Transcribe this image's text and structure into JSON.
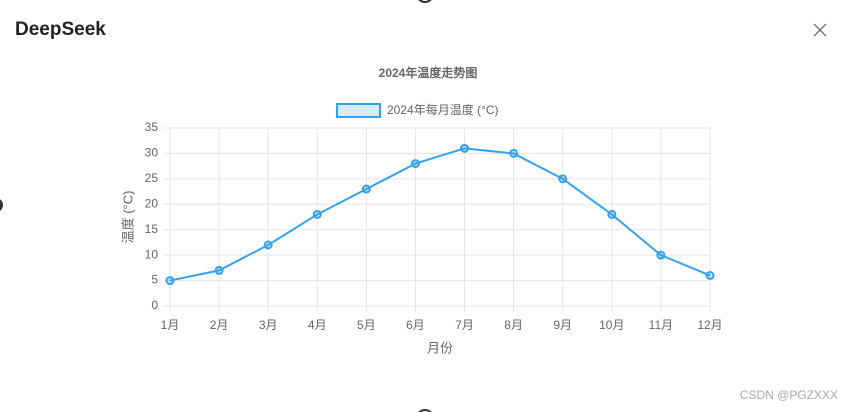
{
  "header": {
    "title": "DeepSeek"
  },
  "watermark": "CSDN @PGZXXX",
  "chart_data": {
    "type": "line",
    "title": "2024年温度走势图",
    "x_label": "月份",
    "y_label": "温度 (°C)",
    "categories": [
      "1月",
      "2月",
      "3月",
      "4月",
      "5月",
      "6月",
      "7月",
      "8月",
      "9月",
      "10月",
      "11月",
      "12月"
    ],
    "series": [
      {
        "name": "2024年每月温度 (°C)",
        "color": "#36a2eb",
        "values": [
          5,
          7,
          12,
          18,
          23,
          28,
          31,
          30,
          25,
          18,
          10,
          6
        ]
      }
    ],
    "ylim": [
      0,
      35
    ],
    "yticks": [
      0,
      5,
      10,
      15,
      20,
      25,
      30,
      35
    ],
    "grid": true,
    "legend": "top"
  }
}
